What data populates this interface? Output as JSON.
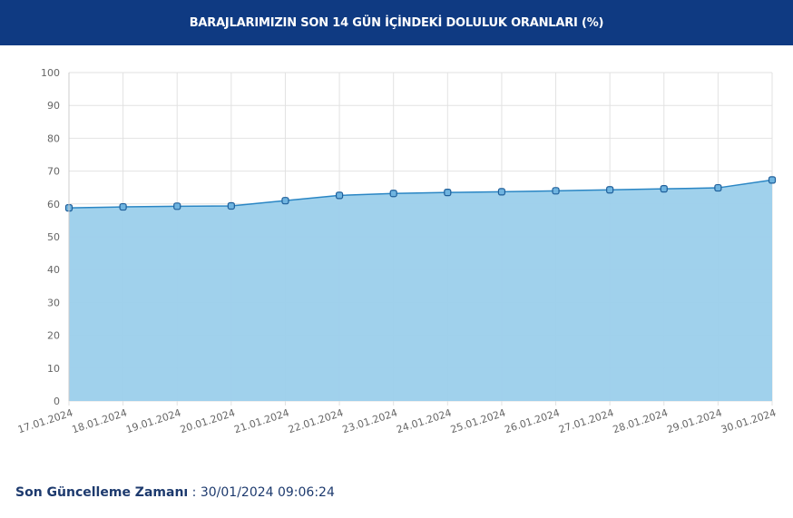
{
  "header": {
    "title": "BARAJLARIMIZIN SON 14 GÜN İÇİNDEKİ DOLULUK ORANLARI (%)"
  },
  "footer": {
    "label": "Son Güncelleme Zamanı",
    "separator": " : ",
    "value": "30/01/2024 09:06:24"
  },
  "chart_data": {
    "type": "area",
    "title": "BARAJLARIMIZIN SON 14 GÜN İÇİNDEKİ DOLULUK ORANLARI (%)",
    "categories": [
      "17.01.2024",
      "18.01.2024",
      "19.01.2024",
      "20.01.2024",
      "21.01.2024",
      "22.01.2024",
      "23.01.2024",
      "24.01.2024",
      "25.01.2024",
      "26.01.2024",
      "27.01.2024",
      "28.01.2024",
      "29.01.2024",
      "30.01.2024"
    ],
    "values": [
      58.8,
      59.1,
      59.3,
      59.4,
      61.0,
      62.6,
      63.2,
      63.5,
      63.7,
      64.0,
      64.3,
      64.6,
      64.9,
      67.3
    ],
    "ylim": [
      0,
      100
    ],
    "yticks": [
      0,
      10,
      20,
      30,
      40,
      50,
      60,
      70,
      80,
      90,
      100
    ],
    "grid": true,
    "colors": {
      "fill": "#9bcfeb",
      "line": "#2a86c4",
      "marker": "#6fb4e0",
      "header": "#0f3a82"
    }
  }
}
